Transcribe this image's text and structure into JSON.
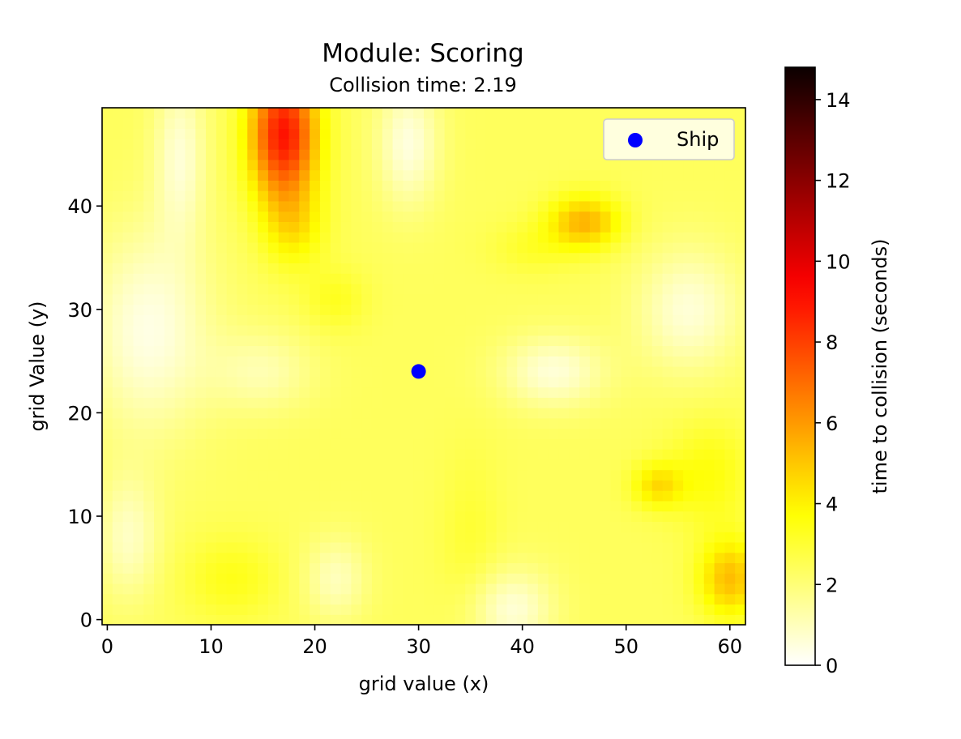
{
  "chart_data": {
    "type": "heatmap",
    "title": "Module: Scoring",
    "subtitle": "Collision time: 2.19",
    "xlabel": "grid value (x)",
    "ylabel": "grid Value (y)",
    "xlim": [
      -0.5,
      61.5
    ],
    "ylim": [
      -0.5,
      49.5
    ],
    "x_ticks": [
      0,
      10,
      20,
      30,
      40,
      50,
      60
    ],
    "y_ticks": [
      0,
      10,
      20,
      30,
      40
    ],
    "grid": false,
    "grid_size": {
      "nx": 62,
      "ny": 50
    },
    "colormap": "hot_r",
    "colorbar": {
      "label": "time to collision (seconds)",
      "min": 0,
      "max": 14.8,
      "ticks": [
        0,
        2,
        4,
        6,
        8,
        10,
        12,
        14
      ]
    },
    "field": {
      "base_value": 2.4,
      "features": [
        {
          "x": 17,
          "y": 47,
          "sx": 3.2,
          "sy": 6.5,
          "amp": 6.6
        },
        {
          "x": 18,
          "y": 38,
          "sx": 3.0,
          "sy": 4.0,
          "amp": 1.6
        },
        {
          "x": 46,
          "y": 38.5,
          "sx": 3.5,
          "sy": 2.6,
          "amp": 3.0
        },
        {
          "x": 53,
          "y": 13,
          "sx": 2.5,
          "sy": 2.2,
          "amp": 2.0
        },
        {
          "x": 60,
          "y": 4,
          "sx": 3.0,
          "sy": 3.8,
          "amp": 2.8
        },
        {
          "x": 58,
          "y": 14,
          "sx": 4.0,
          "sy": 5.0,
          "amp": 1.2
        },
        {
          "x": 12,
          "y": 4,
          "sx": 4.5,
          "sy": 4.0,
          "amp": 1.0
        },
        {
          "x": 35,
          "y": 8,
          "sx": 3.0,
          "sy": 8.0,
          "amp": 0.6
        },
        {
          "x": 22,
          "y": 31,
          "sx": 3.0,
          "sy": 3.0,
          "amp": 0.9
        },
        {
          "x": 41,
          "y": 36,
          "sx": 4.0,
          "sy": 2.5,
          "amp": 0.7
        },
        {
          "x": 4,
          "y": 28,
          "sx": 6.0,
          "sy": 10.0,
          "amp": -2.0
        },
        {
          "x": 7,
          "y": 45,
          "sx": 2.5,
          "sy": 8.0,
          "amp": -1.7
        },
        {
          "x": 29,
          "y": 46,
          "sx": 3.0,
          "sy": 6.0,
          "amp": -1.9
        },
        {
          "x": 43,
          "y": 24,
          "sx": 5.0,
          "sy": 3.5,
          "amp": -1.8
        },
        {
          "x": 56,
          "y": 30,
          "sx": 5.0,
          "sy": 6.0,
          "amp": -1.8
        },
        {
          "x": 39,
          "y": 1,
          "sx": 4.0,
          "sy": 4.0,
          "amp": -1.8
        },
        {
          "x": 22,
          "y": 4,
          "sx": 3.0,
          "sy": 4.0,
          "amp": -1.4
        },
        {
          "x": 2,
          "y": 8,
          "sx": 3.0,
          "sy": 6.0,
          "amp": -1.5
        },
        {
          "x": 15,
          "y": 24,
          "sx": 5.0,
          "sy": 4.0,
          "amp": -1.2
        }
      ]
    },
    "ship": {
      "x": 30,
      "y": 24,
      "color": "#0000ff"
    },
    "legend": {
      "entries": [
        "Ship"
      ],
      "placement": "upper right"
    }
  }
}
